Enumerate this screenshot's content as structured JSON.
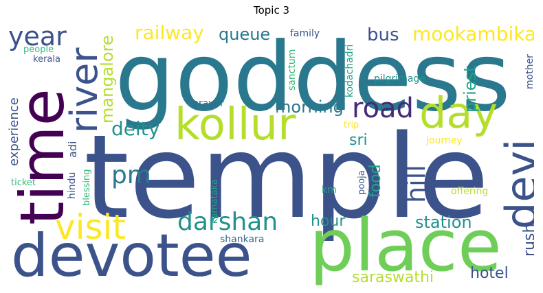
{
  "title": "Topic 3",
  "words": {
    "temple": "temple",
    "goddess": "goddess",
    "place": "place",
    "devotee": "devotee",
    "time": "time",
    "kollur": "kollur",
    "day": "day",
    "devi": "devi",
    "river": "river",
    "year": "year",
    "visit": "visit",
    "darshan": "darshan",
    "road": "road",
    "mookambika": "mookambika",
    "railway": "railway",
    "queue": "queue",
    "bus": "bus",
    "mangalore": "mangalore",
    "priest": "priest",
    "hill": "hill",
    "pm": "pm",
    "deity": "deity",
    "morning": "morning",
    "experience": "experience",
    "station": "station",
    "hour": "hour",
    "saraswathi": "saraswathi",
    "hotel": "hotel",
    "rush": "rush",
    "food": "food",
    "sri": "sri",
    "family": "family",
    "kodachadri": "kodachadri",
    "sanctum": "sanctum",
    "pilgrimage": "pilgrimage",
    "mother": "mother",
    "prayer": "prayer",
    "trip": "trip",
    "journey": "journey",
    "adi": "adi",
    "hindu": "hindu",
    "blessing": "blessing",
    "karnataka": "karnataka",
    "pooja": "pooja",
    "km": "km",
    "offering": "offering",
    "shankara": "shankara",
    "people": "people",
    "kerala": "kerala",
    "ticket": "ticket"
  },
  "colors": {
    "dark_purple": "#440154",
    "indigo": "#482878",
    "slate_blue": "#3b528b",
    "steel_blue": "#31688e",
    "teal_blue": "#2a788e",
    "teal": "#21918c",
    "sea_green": "#20a486",
    "green": "#35b779",
    "light_green": "#6ece58",
    "lime": "#b5de2b",
    "yellow": "#fde725"
  }
}
